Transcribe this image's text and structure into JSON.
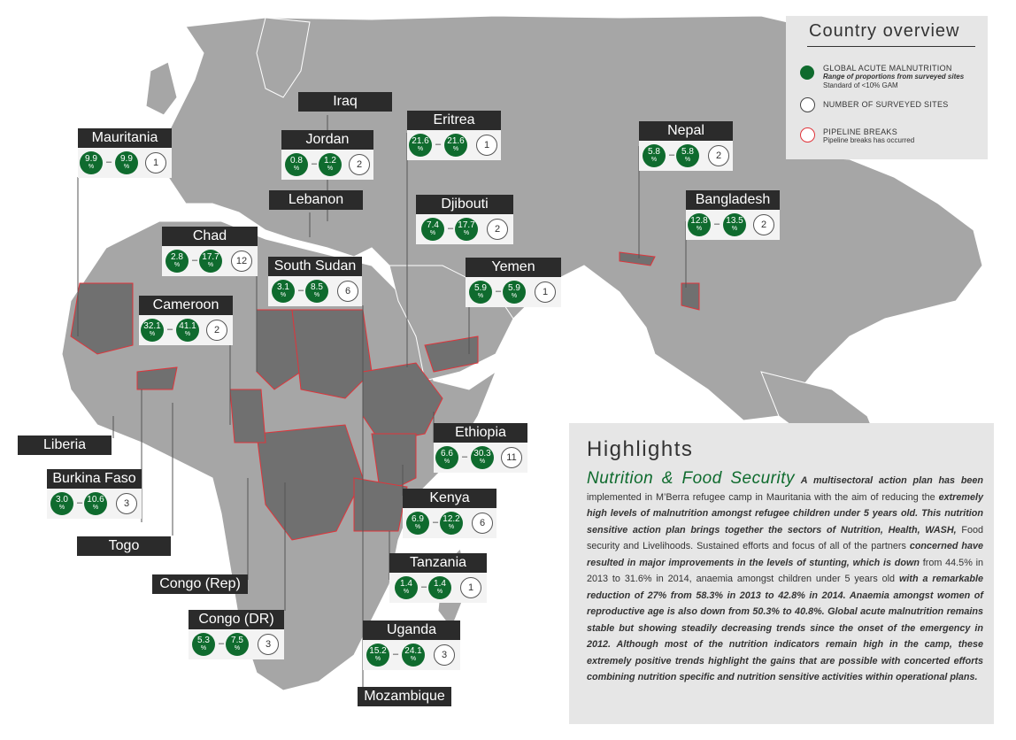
{
  "legend": {
    "title": "Country overview",
    "gam_title": "GLOBAL ACUTE MALNUTRITION",
    "gam_sub": "Range of proportions from surveyed sites",
    "gam_std": "Standard of <10% GAM",
    "sites_title": "NUMBER OF SURVEYED SITES",
    "pipe_title": "PIPELINE BREAKS",
    "pipe_sub": "Pipeline breaks has occurred"
  },
  "cards": [
    {
      "name": "Mauritania",
      "min": "9.9",
      "max": "9.9",
      "sites": "1"
    },
    {
      "name": "Jordan",
      "min": "0.8",
      "max": "1.2",
      "sites": "2"
    },
    {
      "name": "Eritrea",
      "min": "21.6",
      "max": "21.6",
      "sites": "1"
    },
    {
      "name": "Nepal",
      "min": "5.8",
      "max": "5.8",
      "sites": "2"
    },
    {
      "name": "Djibouti",
      "min": "7.4",
      "max": "17.7",
      "sites": "2"
    },
    {
      "name": "Bangladesh",
      "min": "12.8",
      "max": "13.5",
      "sites": "2"
    },
    {
      "name": "Chad",
      "min": "2.8",
      "max": "17.7",
      "sites": "12"
    },
    {
      "name": "South Sudan",
      "min": "3.1",
      "max": "8.5",
      "sites": "6"
    },
    {
      "name": "Yemen",
      "min": "5.9",
      "max": "5.9",
      "sites": "1"
    },
    {
      "name": "Cameroon",
      "min": "32.1",
      "max": "41.1",
      "sites": "2"
    },
    {
      "name": "Ethiopia",
      "min": "6.6",
      "max": "30.3",
      "sites": "11"
    },
    {
      "name": "Burkina Faso",
      "min": "3.0",
      "max": "10.6",
      "sites": "3"
    },
    {
      "name": "Kenya",
      "min": "6.9",
      "max": "12.2",
      "sites": "6"
    },
    {
      "name": "Tanzania",
      "min": "1.4",
      "max": "1.4",
      "sites": "1"
    },
    {
      "name": "Congo (DR)",
      "min": "5.3",
      "max": "7.5",
      "sites": "3"
    },
    {
      "name": "Uganda",
      "min": "15.2",
      "max": "24.1",
      "sites": "3"
    }
  ],
  "tags": {
    "iraq": "Iraq",
    "lebanon": "Lebanon",
    "liberia": "Liberia",
    "togo": "Togo",
    "congo_rep": "Congo (Rep)",
    "mozambique": "Mozambique"
  },
  "unit_symbol": "%",
  "dash": "–",
  "highlights": {
    "title": "Highlights",
    "subtitle": "Nutrition & Food Security",
    "p1_bi": "A multisectoral action plan has been",
    "p2": "implemented in M’Berra refugee camp in Mauritania with the aim of reducing the",
    "p3_bi": "extremely high levels of malnutrition amongst refugee children under 5 years old. This nutrition sensitive action plan brings together the sectors of Nutrition, Health, WASH,",
    "p4": "Food security and Livelihoods. Sustained efforts and focus of all of the partners",
    "p5_bi": "concerned have resulted in major improvements in the levels of stunting, which is down",
    "p6": "from 44.5% in 2013 to 31.6% in 2014, anaemia amongst children under 5 years old",
    "p7_bi": "with a remarkable reduction of 27% from 58.3% in 2013 to 42.8% in 2014. Anaemia amongst women of reproductive age is also down from 50.3% to 40.8%. Global acute malnutrition remains stable but showing steadily decreasing trends since the onset of the emergency in 2012. Although most of the nutrition indicators remain high in the camp, these extremely positive trends highlight the gains that are possible with concerted efforts combining nutrition specific and nutrition sensitive activities within operational plans."
  },
  "colors": {
    "gam_green": "#0f6b2e",
    "land": "#a6a6a6",
    "land_dark": "#707070",
    "pipeline_border": "#e0343a",
    "label_bg": "#2b2b2b"
  }
}
